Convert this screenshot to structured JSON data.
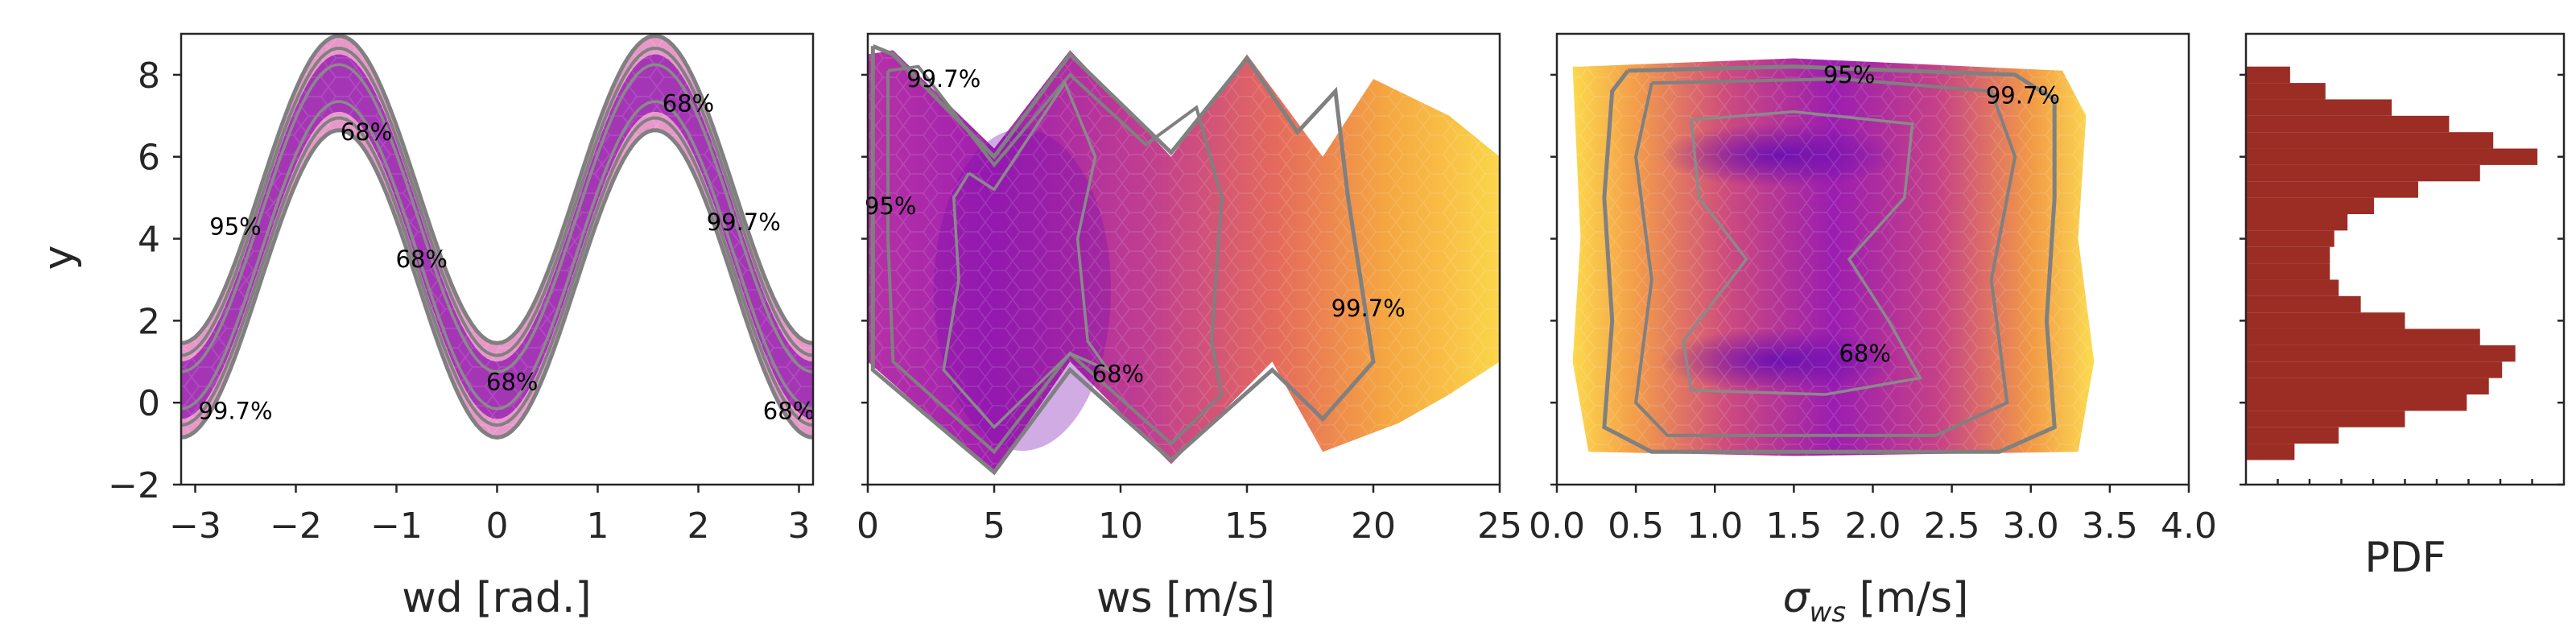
{
  "chart_data": [
    {
      "type": "heatmap",
      "subtype": "hexbin-with-density-contours",
      "xlabel": "wd [rad.]",
      "ylabel": "y",
      "xlim": [
        -3.14,
        3.14
      ],
      "ylim": [
        -2,
        9
      ],
      "xticks": [
        -3,
        -2,
        -1,
        0,
        1,
        2,
        3
      ],
      "xtick_labels": [
        "−3",
        "−2",
        "−1",
        "0",
        "1",
        "2",
        "3"
      ],
      "yticks": [
        -2,
        0,
        2,
        4,
        6,
        8
      ],
      "ytick_labels": [
        "−2",
        "0",
        "2",
        "4",
        "6",
        "8"
      ],
      "relationship": "y ≈ 3.5·sin(wd)² style wave: peaks near y=7.8 at wd=±1.57, troughs near y=0.3 at wd=0 and ±3.14, band width about 2",
      "contour_levels": [
        "68%",
        "95%",
        "99.7%"
      ],
      "contour_labels": [
        {
          "text": "68%",
          "x": -1.3,
          "y": 6.6
        },
        {
          "text": "68%",
          "x": 1.9,
          "y": 7.3
        },
        {
          "text": "95%",
          "x": -2.6,
          "y": 4.3
        },
        {
          "text": "99.7%",
          "x": 2.45,
          "y": 4.4
        },
        {
          "text": "68%",
          "x": -0.75,
          "y": 3.5
        },
        {
          "text": "68%",
          "x": 0.15,
          "y": 0.5
        },
        {
          "text": "99.7%",
          "x": -2.6,
          "y": -0.2
        },
        {
          "text": "68%",
          "x": 2.9,
          "y": -0.2
        }
      ],
      "colormap": "plasma_r",
      "contour_color": "#808080"
    },
    {
      "type": "heatmap",
      "subtype": "hexbin-with-density-contours",
      "xlabel": "ws [m/s]",
      "ylabel": "",
      "xlim": [
        0,
        25
      ],
      "ylim": [
        -2,
        9
      ],
      "xticks": [
        0,
        5,
        10,
        15,
        20,
        25
      ],
      "xtick_labels": [
        "0",
        "5",
        "10",
        "15",
        "20",
        "25"
      ],
      "relationship": "zig-zag boundaries: upper edge peaks y≈8.5 at ws=1, 8, 15 and dips y≈6 at ws=5, 12, 18; lower edge dips y≈-1.5 at ws=5, 12 and rises y≈1 at ws=0, 8, 16; density highest for ws 2–10",
      "contour_levels": [
        "68%",
        "95%",
        "99.7%"
      ],
      "contour_labels": [
        {
          "text": "99.7%",
          "x": 3.0,
          "y": 7.9
        },
        {
          "text": "95%",
          "x": 0.9,
          "y": 4.8
        },
        {
          "text": "99.7%",
          "x": 19.8,
          "y": 2.3
        },
        {
          "text": "68%",
          "x": 9.9,
          "y": 0.7
        }
      ],
      "colormap": "plasma_r",
      "contour_color": "#808080"
    },
    {
      "type": "heatmap",
      "subtype": "hexbin-with-density-contours",
      "xlabel": "σ_ws [m/s]",
      "ylabel": "",
      "xlim": [
        0,
        4
      ],
      "ylim": [
        -2,
        9
      ],
      "xticks": [
        0.0,
        0.5,
        1.0,
        1.5,
        2.0,
        2.5,
        3.0,
        3.5,
        4.0
      ],
      "xtick_labels": [
        "0.0",
        "0.5",
        "1.0",
        "1.5",
        "2.0",
        "2.5",
        "3.0",
        "3.5",
        "4.0"
      ],
      "relationship": "roughly rectangular cloud for σ_ws 0.2–3.2, y -1 to 8; densest near σ_ws≈1.5 at y≈1 and y≈6",
      "contour_levels": [
        "68%",
        "95%",
        "99.7%"
      ],
      "contour_labels": [
        {
          "text": "95%",
          "x": 1.85,
          "y": 8.0
        },
        {
          "text": "99.7%",
          "x": 2.95,
          "y": 7.5
        },
        {
          "text": "68%",
          "x": 1.95,
          "y": 1.2
        }
      ],
      "colormap": "plasma_r",
      "contour_color": "#808080"
    },
    {
      "type": "bar",
      "orientation": "horizontal",
      "xlabel": "PDF",
      "ylabel": "",
      "ylim": [
        -2,
        9
      ],
      "bar_color": "#9b2d24",
      "bin_width": 0.4,
      "bins_y_start": [
        -1.4,
        -1.0,
        -0.6,
        -0.2,
        0.2,
        0.6,
        1.0,
        1.4,
        1.8,
        2.2,
        2.6,
        3.0,
        3.4,
        3.8,
        4.2,
        4.6,
        5.0,
        5.4,
        5.8,
        6.2,
        6.6,
        7.0,
        7.4,
        7.8
      ],
      "values": [
        0.11,
        0.21,
        0.36,
        0.5,
        0.55,
        0.58,
        0.61,
        0.53,
        0.36,
        0.26,
        0.21,
        0.19,
        0.19,
        0.2,
        0.23,
        0.29,
        0.39,
        0.53,
        0.66,
        0.56,
        0.46,
        0.33,
        0.18,
        0.1
      ],
      "xlim": [
        0,
        0.72
      ]
    }
  ]
}
